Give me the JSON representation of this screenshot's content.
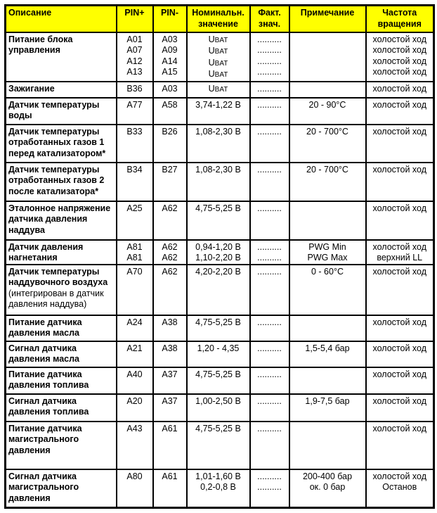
{
  "headers": [
    "Описание",
    "PIN+",
    "PIN-",
    "Номинальн. значение",
    "Факт. знач.",
    "Примечание",
    "Частота вращения"
  ],
  "rows": [
    {
      "desc": "Питание блока управления",
      "desc_note": "",
      "pin_plus": [
        "A01",
        "A07",
        "A12",
        "A13"
      ],
      "pin_minus": [
        "A03",
        "A09",
        "A14",
        "A15"
      ],
      "nominal": [
        "UBAT",
        "UBAT",
        "UBAT",
        "UBAT"
      ],
      "actual": [
        "..........",
        "..........",
        "..........",
        ".........."
      ],
      "note": [],
      "rpm": [
        "холостой ход",
        "холостой ход",
        "холостой ход",
        "холостой ход"
      ]
    },
    {
      "desc": "Зажигание",
      "desc_note": "",
      "pin_plus": [
        "B36"
      ],
      "pin_minus": [
        "A03"
      ],
      "nominal": [
        "UBAT"
      ],
      "actual": [
        ".........."
      ],
      "note": [],
      "rpm": [
        "холостой ход"
      ]
    },
    {
      "desc": "Датчик температуры воды",
      "desc_note": "",
      "pin_plus": [
        "A77"
      ],
      "pin_minus": [
        "A58"
      ],
      "nominal": [
        "3,74-1,22 В"
      ],
      "actual": [
        ".........."
      ],
      "note": [
        "20 - 90°C"
      ],
      "rpm": [
        "холостой ход"
      ]
    },
    {
      "desc": "Датчик температуры отработанных газов 1 перед катализатором*",
      "desc_note": "",
      "pin_plus": [
        "B33"
      ],
      "pin_minus": [
        "B26"
      ],
      "nominal": [
        "1,08-2,30 В"
      ],
      "actual": [
        ".........."
      ],
      "note": [
        "20 - 700°C"
      ],
      "rpm": [
        "холостой ход"
      ]
    },
    {
      "desc": "Датчик температуры отработанных газов 2 после катализатора*",
      "desc_note": "",
      "pin_plus": [
        "B34"
      ],
      "pin_minus": [
        "B27"
      ],
      "nominal": [
        "1,08-2,30 В"
      ],
      "actual": [
        ".........."
      ],
      "note": [
        "20 - 700°C"
      ],
      "rpm": [
        "холостой ход"
      ]
    },
    {
      "desc": "Эталонное напряжение датчика давления наддува",
      "desc_note": "",
      "pin_plus": [
        "A25"
      ],
      "pin_minus": [
        "A62"
      ],
      "nominal": [
        "4,75-5,25 В"
      ],
      "actual": [
        ".........."
      ],
      "note": [],
      "rpm": [
        "холостой ход"
      ]
    },
    {
      "desc": "Датчик давления нагнетания",
      "desc_note": "",
      "pin_plus": [
        "A81",
        "A81"
      ],
      "pin_minus": [
        "A62",
        "A62"
      ],
      "nominal": [
        "0,94-1,20 В",
        "1,10-2,20 В"
      ],
      "actual": [
        "..........",
        ".........."
      ],
      "note": [
        "PWG Min",
        "PWG Max"
      ],
      "rpm": [
        "холостой ход",
        "верхний LL"
      ]
    },
    {
      "desc": "Датчик температуры наддувочного воздуха",
      "desc_note": "(интегрирован в датчик давления наддува)",
      "pin_plus": [
        "A70"
      ],
      "pin_minus": [
        "A62"
      ],
      "nominal": [
        "4,20-2,20 В"
      ],
      "actual": [
        ".........."
      ],
      "note": [
        "0 - 60°C"
      ],
      "rpm": [
        "холостой ход"
      ]
    },
    {
      "desc": "Питание датчика давления масла",
      "desc_note": "",
      "pin_plus": [
        "A24"
      ],
      "pin_minus": [
        "A38"
      ],
      "nominal": [
        "4,75-5,25 В"
      ],
      "actual": [
        ".........."
      ],
      "note": [],
      "rpm": [
        "холостой ход"
      ]
    },
    {
      "desc": "Сигнал датчика давления масла",
      "desc_note": "",
      "pin_plus": [
        "A21"
      ],
      "pin_minus": [
        "A38"
      ],
      "nominal": [
        "1,20 - 4,35"
      ],
      "actual": [
        ".........."
      ],
      "note": [
        "1,5-5,4 бар"
      ],
      "rpm": [
        "холостой ход"
      ]
    },
    {
      "desc": "Питание датчика давления топлива",
      "desc_note": "",
      "pin_plus": [
        "A40"
      ],
      "pin_minus": [
        "A37"
      ],
      "nominal": [
        "4,75-5,25 В"
      ],
      "actual": [
        ".........."
      ],
      "note": [],
      "rpm": [
        "холостой ход"
      ]
    },
    {
      "desc": "Сигнал датчика давления топлива",
      "desc_note": "",
      "pin_plus": [
        "A20"
      ],
      "pin_minus": [
        "A37"
      ],
      "nominal": [
        "1,00-2,50 В"
      ],
      "actual": [
        ".........."
      ],
      "note": [
        "1,9-7,5 бар"
      ],
      "rpm": [
        "холостой ход"
      ]
    },
    {
      "desc": "Питание датчика магистрального давления",
      "desc_note": "",
      "pin_plus": [
        "A43"
      ],
      "pin_minus": [
        "A61"
      ],
      "nominal": [
        "4,75-5,25 В"
      ],
      "actual": [
        ".........."
      ],
      "note": [],
      "rpm": [
        "холостой ход"
      ]
    },
    {
      "desc": "Сигнал датчика магистрального давления",
      "desc_note": "",
      "pin_plus": [
        "A80"
      ],
      "pin_minus": [
        "A61"
      ],
      "nominal": [
        "1,01-1,60 В",
        "0,2-0,8 В"
      ],
      "actual": [
        "..........",
        ".........."
      ],
      "note": [
        "200-400 бар",
        "ок. 0 бар"
      ],
      "rpm": [
        "холостой ход",
        "Останов"
      ]
    }
  ]
}
